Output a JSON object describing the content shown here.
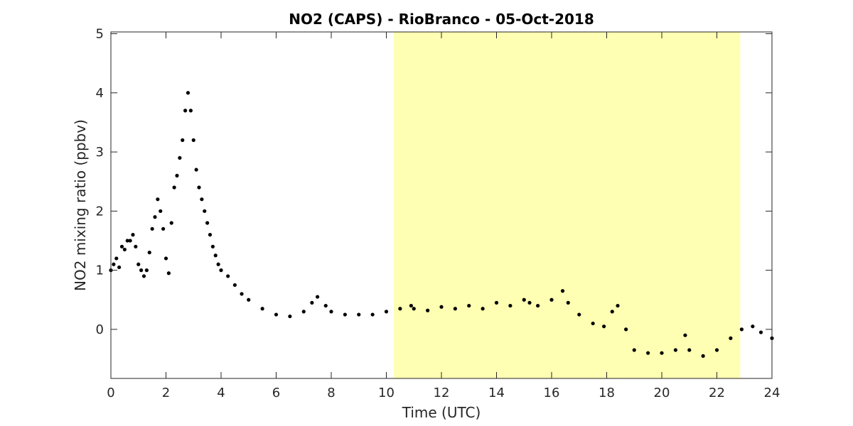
{
  "chart_data": {
    "type": "scatter",
    "title": "NO2 (CAPS) - RioBranco - 05-Oct-2018",
    "xlabel": "Time (UTC)",
    "ylabel": "NO2 mixing ratio (ppbv)",
    "xlim": [
      0,
      24
    ],
    "ylim": [
      -0.83,
      5.03
    ],
    "xticks": [
      0,
      2,
      4,
      6,
      8,
      10,
      12,
      14,
      16,
      18,
      20,
      22,
      24
    ],
    "yticks": [
      0,
      1,
      2,
      3,
      4,
      5
    ],
    "grid": false,
    "marker_color": "#000000",
    "highlight_color": "#ffffb3",
    "highlight_x": [
      10.27,
      22.85
    ],
    "series": [
      {
        "x": [
          0.0,
          0.1,
          0.2,
          0.3,
          0.4,
          0.5,
          0.6,
          0.7,
          0.8,
          0.9,
          1.0,
          1.1,
          1.2,
          1.3,
          1.4,
          1.5,
          1.6,
          1.7,
          1.8,
          1.9,
          2.0,
          2.1,
          2.2,
          2.3,
          2.4,
          2.5,
          2.6,
          2.7,
          2.8,
          2.9,
          3.0,
          3.1,
          3.2,
          3.3,
          3.4,
          3.5,
          3.6,
          3.7,
          3.8,
          3.9,
          4.0,
          4.25,
          4.5,
          4.75,
          5.0,
          5.5,
          6.0,
          6.5,
          7.0,
          7.3,
          7.5,
          7.8,
          8.0,
          8.5,
          9.0,
          9.5,
          10.0,
          10.5,
          10.9,
          11.0,
          11.5,
          12.0,
          12.5,
          13.0,
          13.5,
          14.0,
          14.5,
          15.0,
          15.2,
          15.5,
          16.0,
          16.4,
          16.6,
          17.0,
          17.5,
          17.9,
          18.2,
          18.4,
          18.7,
          19.0,
          19.5,
          20.0,
          20.5,
          20.85,
          21.0,
          21.5,
          22.0,
          22.5,
          22.9,
          23.3,
          23.6,
          24.0
        ],
        "y": [
          1.0,
          1.1,
          1.2,
          1.05,
          1.4,
          1.35,
          1.5,
          1.5,
          1.6,
          1.4,
          1.1,
          1.0,
          0.9,
          1.0,
          1.3,
          1.7,
          1.9,
          2.2,
          2.0,
          1.7,
          1.2,
          0.95,
          1.8,
          2.4,
          2.6,
          2.9,
          3.2,
          3.7,
          4.0,
          3.7,
          3.2,
          2.7,
          2.4,
          2.2,
          2.0,
          1.8,
          1.6,
          1.4,
          1.25,
          1.1,
          1.0,
          0.9,
          0.75,
          0.6,
          0.5,
          0.35,
          0.25,
          0.22,
          0.3,
          0.45,
          0.55,
          0.4,
          0.3,
          0.25,
          0.25,
          0.25,
          0.3,
          0.35,
          0.4,
          0.35,
          0.32,
          0.38,
          0.35,
          0.4,
          0.35,
          0.45,
          0.4,
          0.5,
          0.45,
          0.4,
          0.5,
          0.65,
          0.45,
          0.25,
          0.1,
          0.05,
          0.3,
          0.4,
          0.0,
          -0.35,
          -0.4,
          -0.4,
          -0.35,
          -0.1,
          -0.35,
          -0.45,
          -0.35,
          -0.15,
          0.0,
          0.05,
          -0.05,
          -0.15
        ]
      }
    ]
  }
}
